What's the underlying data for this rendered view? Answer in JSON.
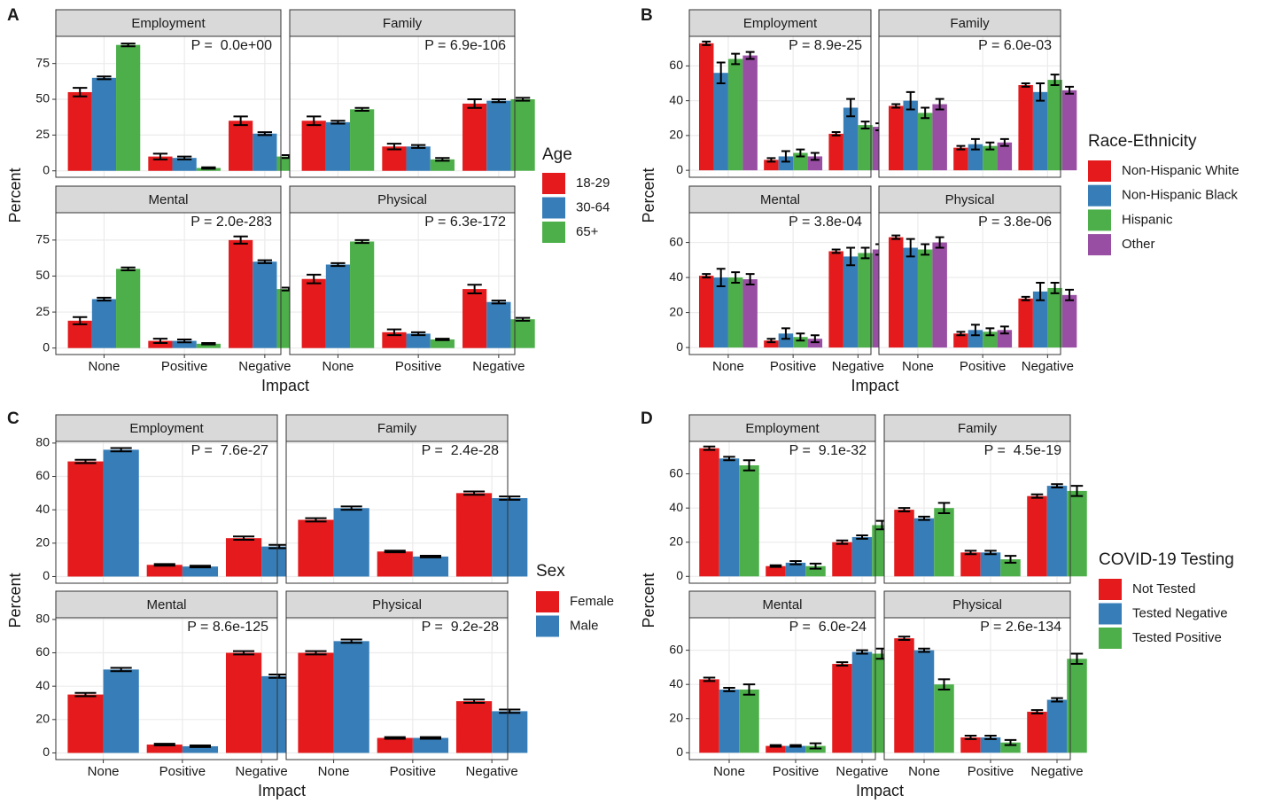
{
  "chart_data": [
    {
      "type": "bar",
      "label": "A",
      "xlabel": "Impact",
      "ylabel": "Percent",
      "legend_title": "Age",
      "categories": [
        "None",
        "Positive",
        "Negative"
      ],
      "ylim": [
        -4.5,
        94
      ],
      "yticks": [
        0,
        25,
        50,
        75
      ],
      "grid": true,
      "groups": [
        {
          "name": "18-29",
          "color": "#e41a1c"
        },
        {
          "name": "30-64",
          "color": "#377eb8"
        },
        {
          "name": "65+",
          "color": "#4daf4a"
        }
      ],
      "facets": [
        {
          "title": "Employment",
          "annotation": "P =  0.0e+00",
          "series": [
            {
              "values": [
                55,
                10,
                35
              ],
              "errors": [
                3,
                2,
                3
              ]
            },
            {
              "values": [
                65,
                9,
                26
              ],
              "errors": [
                1,
                1,
                1
              ]
            },
            {
              "values": [
                88,
                2,
                10
              ],
              "errors": [
                1,
                0.5,
                1
              ]
            }
          ]
        },
        {
          "title": "Family",
          "annotation": "P = 6.9e-106",
          "series": [
            {
              "values": [
                35,
                17,
                47
              ],
              "errors": [
                3,
                2,
                3
              ]
            },
            {
              "values": [
                34,
                17,
                49
              ],
              "errors": [
                1,
                1,
                1
              ]
            },
            {
              "values": [
                43,
                8,
                50
              ],
              "errors": [
                1,
                1,
                1
              ]
            }
          ]
        },
        {
          "title": "Mental",
          "annotation": "P = 2.0e-283",
          "series": [
            {
              "values": [
                19,
                5,
                75
              ],
              "errors": [
                2.5,
                1.5,
                2.5
              ]
            },
            {
              "values": [
                34,
                5,
                60
              ],
              "errors": [
                1,
                1,
                1
              ]
            },
            {
              "values": [
                55,
                3,
                41
              ],
              "errors": [
                1,
                0.5,
                1
              ]
            }
          ]
        },
        {
          "title": "Physical",
          "annotation": "P = 6.3e-172",
          "series": [
            {
              "values": [
                48,
                11,
                41
              ],
              "errors": [
                3,
                2,
                3
              ]
            },
            {
              "values": [
                58,
                10,
                32
              ],
              "errors": [
                1,
                1,
                1
              ]
            },
            {
              "values": [
                74,
                6,
                20
              ],
              "errors": [
                1,
                0.5,
                1
              ]
            }
          ]
        }
      ]
    },
    {
      "type": "bar",
      "label": "B",
      "xlabel": "Impact",
      "ylabel": "Percent",
      "legend_title": "Race-Ethnicity",
      "categories": [
        "None",
        "Positive",
        "Negative"
      ],
      "ylim": [
        -4,
        77
      ],
      "yticks": [
        0,
        20,
        40,
        60
      ],
      "grid": true,
      "groups": [
        {
          "name": "Non-Hispanic White",
          "color": "#e41a1c"
        },
        {
          "name": "Non-Hispanic Black",
          "color": "#377eb8"
        },
        {
          "name": "Hispanic",
          "color": "#4daf4a"
        },
        {
          "name": "Other",
          "color": "#984ea3"
        }
      ],
      "facets": [
        {
          "title": "Employment",
          "annotation": "P = 8.9e-25",
          "series": [
            {
              "values": [
                73,
                6,
                21
              ],
              "errors": [
                1,
                1,
                1
              ]
            },
            {
              "values": [
                56,
                8,
                36
              ],
              "errors": [
                6,
                3,
                5
              ]
            },
            {
              "values": [
                64,
                10,
                26
              ],
              "errors": [
                3,
                2,
                2
              ]
            },
            {
              "values": [
                66,
                8,
                25
              ],
              "errors": [
                2,
                2,
                2
              ]
            }
          ]
        },
        {
          "title": "Family",
          "annotation": "P = 6.0e-03",
          "series": [
            {
              "values": [
                37,
                13,
                49
              ],
              "errors": [
                1,
                1,
                1
              ]
            },
            {
              "values": [
                40,
                15,
                45
              ],
              "errors": [
                5,
                3,
                5
              ]
            },
            {
              "values": [
                33,
                14,
                52
              ],
              "errors": [
                3,
                2,
                3
              ]
            },
            {
              "values": [
                38,
                16,
                46
              ],
              "errors": [
                3,
                2,
                2
              ]
            }
          ]
        },
        {
          "title": "Mental",
          "annotation": "P = 3.8e-04",
          "series": [
            {
              "values": [
                41,
                4,
                55
              ],
              "errors": [
                1,
                1,
                1
              ]
            },
            {
              "values": [
                40,
                8,
                52
              ],
              "errors": [
                5,
                3,
                5
              ]
            },
            {
              "values": [
                40,
                6,
                54
              ],
              "errors": [
                3,
                2,
                3
              ]
            },
            {
              "values": [
                39,
                5,
                56
              ],
              "errors": [
                3,
                2,
                3
              ]
            }
          ]
        },
        {
          "title": "Physical",
          "annotation": "P = 3.8e-06",
          "series": [
            {
              "values": [
                63,
                8,
                28
              ],
              "errors": [
                1,
                1,
                1
              ]
            },
            {
              "values": [
                57,
                10,
                32
              ],
              "errors": [
                5,
                3,
                5
              ]
            },
            {
              "values": [
                56,
                9,
                34
              ],
              "errors": [
                3,
                2,
                3
              ]
            },
            {
              "values": [
                60,
                10,
                30
              ],
              "errors": [
                3,
                2,
                3
              ]
            }
          ]
        }
      ]
    },
    {
      "type": "bar",
      "label": "C",
      "xlabel": "Impact",
      "ylabel": "Percent",
      "legend_title": "Sex",
      "categories": [
        "None",
        "Positive",
        "Negative"
      ],
      "ylim": [
        -4,
        81
      ],
      "yticks": [
        0,
        20,
        40,
        60,
        80
      ],
      "grid": true,
      "groups": [
        {
          "name": "Female",
          "color": "#e41a1c"
        },
        {
          "name": "Male",
          "color": "#377eb8"
        }
      ],
      "facets": [
        {
          "title": "Employment",
          "annotation": "P =  7.6e-27",
          "series": [
            {
              "values": [
                69,
                7,
                23
              ],
              "errors": [
                1,
                0.5,
                1
              ]
            },
            {
              "values": [
                76,
                6,
                18
              ],
              "errors": [
                1,
                0.5,
                1
              ]
            }
          ]
        },
        {
          "title": "Family",
          "annotation": "P =  2.4e-28",
          "series": [
            {
              "values": [
                34,
                15,
                50
              ],
              "errors": [
                1,
                0.5,
                1
              ]
            },
            {
              "values": [
                41,
                12,
                47
              ],
              "errors": [
                1,
                0.5,
                1
              ]
            }
          ]
        },
        {
          "title": "Mental",
          "annotation": "P = 8.6e-125",
          "series": [
            {
              "values": [
                35,
                5,
                60
              ],
              "errors": [
                1,
                0.5,
                1
              ]
            },
            {
              "values": [
                50,
                4,
                46
              ],
              "errors": [
                1,
                0.5,
                1
              ]
            }
          ]
        },
        {
          "title": "Physical",
          "annotation": "P =  9.2e-28",
          "series": [
            {
              "values": [
                60,
                9,
                31
              ],
              "errors": [
                1,
                0.5,
                1
              ]
            },
            {
              "values": [
                67,
                9,
                25
              ],
              "errors": [
                1,
                0.5,
                1
              ]
            }
          ]
        }
      ]
    },
    {
      "type": "bar",
      "label": "D",
      "xlabel": "Impact",
      "ylabel": "Percent",
      "legend_title": "COVID-19 Testing",
      "categories": [
        "None",
        "Positive",
        "Negative"
      ],
      "ylim": [
        -4,
        79
      ],
      "yticks": [
        0,
        20,
        40,
        60
      ],
      "grid": true,
      "groups": [
        {
          "name": "Not Tested",
          "color": "#e41a1c"
        },
        {
          "name": "Tested Negative",
          "color": "#377eb8"
        },
        {
          "name": "Tested Positive",
          "color": "#4daf4a"
        }
      ],
      "facets": [
        {
          "title": "Employment",
          "annotation": "P =  9.1e-32",
          "series": [
            {
              "values": [
                75,
                6,
                20
              ],
              "errors": [
                1,
                0.5,
                1
              ]
            },
            {
              "values": [
                69,
                8,
                23
              ],
              "errors": [
                1,
                1,
                1
              ]
            },
            {
              "values": [
                65,
                6,
                30
              ],
              "errors": [
                3,
                1.5,
                2.5
              ]
            }
          ]
        },
        {
          "title": "Family",
          "annotation": "P =  4.5e-19",
          "series": [
            {
              "values": [
                39,
                14,
                47
              ],
              "errors": [
                1,
                1,
                1
              ]
            },
            {
              "values": [
                34,
                14,
                53
              ],
              "errors": [
                1,
                1,
                1
              ]
            },
            {
              "values": [
                40,
                10,
                50
              ],
              "errors": [
                3,
                2,
                3
              ]
            }
          ]
        },
        {
          "title": "Mental",
          "annotation": "P =  6.0e-24",
          "series": [
            {
              "values": [
                43,
                4,
                52
              ],
              "errors": [
                1,
                0.5,
                1
              ]
            },
            {
              "values": [
                37,
                4,
                59
              ],
              "errors": [
                1,
                0.5,
                1
              ]
            },
            {
              "values": [
                37,
                4,
                58
              ],
              "errors": [
                3,
                1.5,
                3
              ]
            }
          ]
        },
        {
          "title": "Physical",
          "annotation": "P = 2.6e-134",
          "series": [
            {
              "values": [
                67,
                9,
                24
              ],
              "errors": [
                1,
                1,
                1
              ]
            },
            {
              "values": [
                60,
                9,
                31
              ],
              "errors": [
                1,
                1,
                1
              ]
            },
            {
              "values": [
                40,
                6,
                55
              ],
              "errors": [
                3,
                1.5,
                3
              ]
            }
          ]
        }
      ]
    }
  ]
}
